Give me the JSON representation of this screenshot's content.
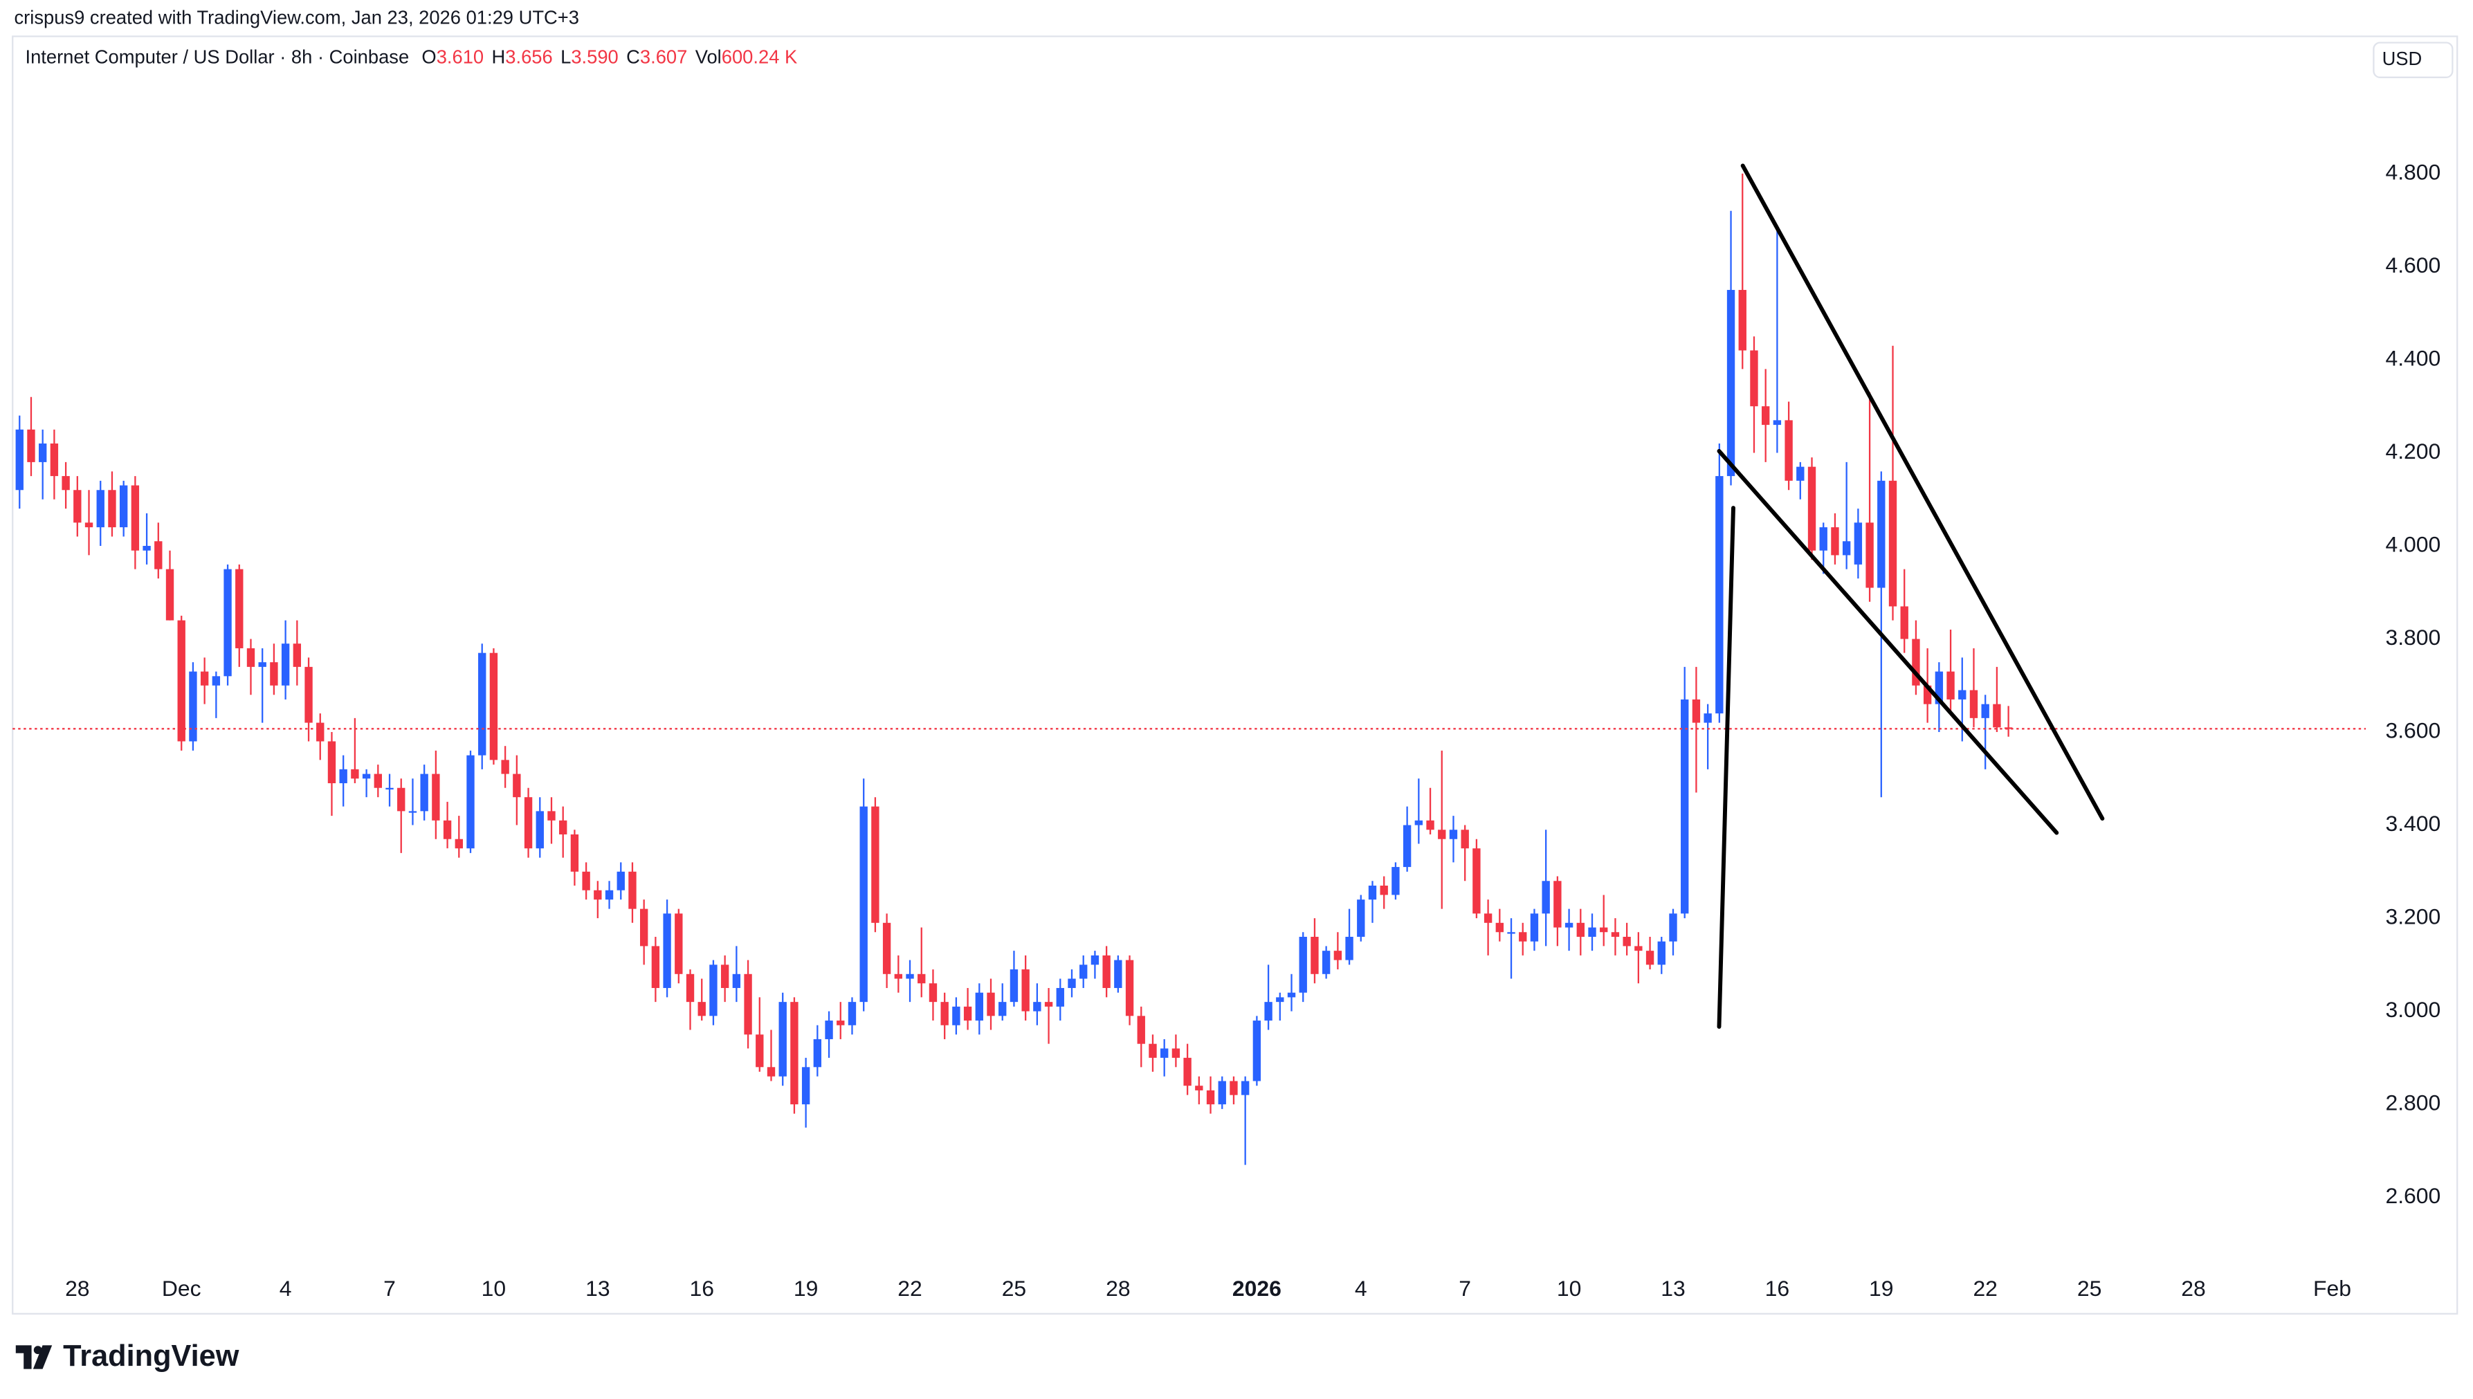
{
  "header": {
    "byline": "crispus9 created with TradingView.com, Jan 23, 2026 01:29 UTC+3",
    "symbol": "Internet Computer / US Dollar · 8h · Coinbase",
    "fields": [
      {
        "key": "O",
        "value": "3.610"
      },
      {
        "key": "H",
        "value": "3.656"
      },
      {
        "key": "L",
        "value": "3.590"
      },
      {
        "key": "C",
        "value": "3.607"
      },
      {
        "key": "Vol",
        "value": "600.24 K"
      }
    ],
    "currency": "USD",
    "brand": "TradingView"
  },
  "chart_data": {
    "type": "candlestick",
    "up_color": "#2962ff",
    "down_color": "#f23645",
    "last_price_line": true,
    "xlim": [
      -0.6,
      202.9
    ],
    "ylim": [
      2.35,
      5.0
    ],
    "yticks": [
      {
        "value": 2.6,
        "label": "2.600"
      },
      {
        "value": 2.8,
        "label": "2.800"
      },
      {
        "value": 3.0,
        "label": "3.000"
      },
      {
        "value": 3.2,
        "label": "3.200"
      },
      {
        "value": 3.4,
        "label": "3.400"
      },
      {
        "value": 3.6,
        "label": "3.600"
      },
      {
        "value": 3.8,
        "label": "3.800"
      },
      {
        "value": 4.0,
        "label": "4.000"
      },
      {
        "value": 4.2,
        "label": "4.200"
      },
      {
        "value": 4.4,
        "label": "4.400"
      },
      {
        "value": 4.6,
        "label": "4.600"
      },
      {
        "value": 4.8,
        "label": "4.800"
      }
    ],
    "xticks": [
      {
        "value": 5,
        "label": "28"
      },
      {
        "value": 14,
        "label": "Dec"
      },
      {
        "value": 23,
        "label": "4"
      },
      {
        "value": 32,
        "label": "7"
      },
      {
        "value": 41,
        "label": "10"
      },
      {
        "value": 50,
        "label": "13"
      },
      {
        "value": 59,
        "label": "16"
      },
      {
        "value": 68,
        "label": "19"
      },
      {
        "value": 77,
        "label": "22"
      },
      {
        "value": 86,
        "label": "25"
      },
      {
        "value": 95,
        "label": "28"
      },
      {
        "value": 107,
        "label": "2026"
      },
      {
        "value": 116,
        "label": "4"
      },
      {
        "value": 125,
        "label": "7"
      },
      {
        "value": 134,
        "label": "10"
      },
      {
        "value": 143,
        "label": "13"
      },
      {
        "value": 152,
        "label": "16"
      },
      {
        "value": 161,
        "label": "19"
      },
      {
        "value": 170,
        "label": "22"
      },
      {
        "value": 179,
        "label": "25"
      },
      {
        "value": 188,
        "label": "28"
      },
      {
        "value": 200,
        "label": "Feb"
      }
    ],
    "ohlc": [
      [
        4.12,
        4.28,
        4.08,
        4.25
      ],
      [
        4.25,
        4.32,
        4.15,
        4.18
      ],
      [
        4.18,
        4.25,
        4.1,
        4.22
      ],
      [
        4.22,
        4.25,
        4.1,
        4.15
      ],
      [
        4.15,
        4.18,
        4.08,
        4.12
      ],
      [
        4.12,
        4.15,
        4.02,
        4.05
      ],
      [
        4.05,
        4.12,
        3.98,
        4.04
      ],
      [
        4.04,
        4.14,
        4.0,
        4.12
      ],
      [
        4.12,
        4.16,
        4.02,
        4.04
      ],
      [
        4.04,
        4.14,
        4.02,
        4.13
      ],
      [
        4.13,
        4.15,
        3.95,
        3.99
      ],
      [
        3.99,
        4.07,
        3.96,
        4.0
      ],
      [
        4.01,
        4.05,
        3.93,
        3.95
      ],
      [
        3.95,
        3.99,
        3.84,
        3.84
      ],
      [
        3.84,
        3.85,
        3.56,
        3.58
      ],
      [
        3.58,
        3.75,
        3.56,
        3.73
      ],
      [
        3.73,
        3.76,
        3.66,
        3.7
      ],
      [
        3.7,
        3.73,
        3.63,
        3.72
      ],
      [
        3.72,
        3.96,
        3.7,
        3.95
      ],
      [
        3.95,
        3.96,
        3.74,
        3.78
      ],
      [
        3.78,
        3.8,
        3.68,
        3.74
      ],
      [
        3.74,
        3.78,
        3.62,
        3.75
      ],
      [
        3.75,
        3.79,
        3.68,
        3.7
      ],
      [
        3.7,
        3.84,
        3.67,
        3.79
      ],
      [
        3.79,
        3.84,
        3.7,
        3.74
      ],
      [
        3.74,
        3.76,
        3.58,
        3.62
      ],
      [
        3.62,
        3.64,
        3.54,
        3.58
      ],
      [
        3.58,
        3.6,
        3.42,
        3.49
      ],
      [
        3.49,
        3.55,
        3.44,
        3.52
      ],
      [
        3.52,
        3.63,
        3.49,
        3.5
      ],
      [
        3.5,
        3.52,
        3.46,
        3.51
      ],
      [
        3.51,
        3.53,
        3.46,
        3.48
      ],
      [
        3.48,
        3.51,
        3.44,
        3.48
      ],
      [
        3.48,
        3.5,
        3.34,
        3.43
      ],
      [
        3.43,
        3.5,
        3.4,
        3.43
      ],
      [
        3.43,
        3.53,
        3.41,
        3.51
      ],
      [
        3.51,
        3.56,
        3.37,
        3.41
      ],
      [
        3.41,
        3.45,
        3.35,
        3.37
      ],
      [
        3.37,
        3.42,
        3.33,
        3.35
      ],
      [
        3.35,
        3.56,
        3.34,
        3.55
      ],
      [
        3.55,
        3.79,
        3.52,
        3.77
      ],
      [
        3.77,
        3.78,
        3.53,
        3.54
      ],
      [
        3.54,
        3.57,
        3.48,
        3.51
      ],
      [
        3.51,
        3.55,
        3.4,
        3.46
      ],
      [
        3.46,
        3.48,
        3.33,
        3.35
      ],
      [
        3.35,
        3.46,
        3.33,
        3.43
      ],
      [
        3.43,
        3.46,
        3.36,
        3.41
      ],
      [
        3.41,
        3.44,
        3.33,
        3.38
      ],
      [
        3.38,
        3.39,
        3.27,
        3.3
      ],
      [
        3.3,
        3.32,
        3.24,
        3.26
      ],
      [
        3.26,
        3.28,
        3.2,
        3.24
      ],
      [
        3.24,
        3.28,
        3.22,
        3.26
      ],
      [
        3.26,
        3.32,
        3.24,
        3.3
      ],
      [
        3.3,
        3.32,
        3.19,
        3.22
      ],
      [
        3.22,
        3.24,
        3.1,
        3.14
      ],
      [
        3.14,
        3.16,
        3.02,
        3.05
      ],
      [
        3.05,
        3.24,
        3.03,
        3.21
      ],
      [
        3.21,
        3.22,
        3.06,
        3.08
      ],
      [
        3.08,
        3.09,
        2.96,
        3.02
      ],
      [
        3.02,
        3.07,
        2.98,
        2.99
      ],
      [
        2.99,
        3.11,
        2.97,
        3.1
      ],
      [
        3.1,
        3.12,
        3.02,
        3.05
      ],
      [
        3.05,
        3.14,
        3.02,
        3.08
      ],
      [
        3.08,
        3.11,
        2.92,
        2.95
      ],
      [
        2.95,
        3.03,
        2.87,
        2.88
      ],
      [
        2.88,
        2.96,
        2.85,
        2.86
      ],
      [
        2.86,
        3.04,
        2.84,
        3.02
      ],
      [
        3.02,
        3.03,
        2.78,
        2.8
      ],
      [
        2.8,
        2.9,
        2.75,
        2.88
      ],
      [
        2.88,
        2.97,
        2.86,
        2.94
      ],
      [
        2.94,
        3.0,
        2.9,
        2.98
      ],
      [
        2.98,
        3.02,
        2.94,
        2.97
      ],
      [
        2.97,
        3.03,
        2.95,
        3.02
      ],
      [
        3.02,
        3.5,
        3.0,
        3.44
      ],
      [
        3.44,
        3.46,
        3.17,
        3.19
      ],
      [
        3.19,
        3.21,
        3.05,
        3.08
      ],
      [
        3.08,
        3.12,
        3.04,
        3.07
      ],
      [
        3.07,
        3.11,
        3.02,
        3.08
      ],
      [
        3.08,
        3.18,
        3.03,
        3.06
      ],
      [
        3.06,
        3.09,
        2.98,
        3.02
      ],
      [
        3.02,
        3.04,
        2.94,
        2.97
      ],
      [
        2.97,
        3.03,
        2.95,
        3.01
      ],
      [
        3.01,
        3.05,
        2.96,
        2.98
      ],
      [
        2.98,
        3.06,
        2.95,
        3.04
      ],
      [
        3.04,
        3.07,
        2.96,
        2.99
      ],
      [
        2.99,
        3.06,
        2.98,
        3.02
      ],
      [
        3.02,
        3.13,
        3.01,
        3.09
      ],
      [
        3.09,
        3.12,
        2.98,
        3.0
      ],
      [
        3.0,
        3.06,
        2.97,
        3.02
      ],
      [
        3.02,
        3.05,
        2.93,
        3.01
      ],
      [
        3.01,
        3.07,
        2.98,
        3.05
      ],
      [
        3.05,
        3.09,
        3.03,
        3.07
      ],
      [
        3.07,
        3.12,
        3.05,
        3.1
      ],
      [
        3.1,
        3.13,
        3.07,
        3.12
      ],
      [
        3.12,
        3.14,
        3.03,
        3.05
      ],
      [
        3.05,
        3.12,
        3.04,
        3.11
      ],
      [
        3.11,
        3.12,
        2.97,
        2.99
      ],
      [
        2.99,
        3.01,
        2.88,
        2.93
      ],
      [
        2.93,
        2.95,
        2.87,
        2.9
      ],
      [
        2.9,
        2.94,
        2.86,
        2.92
      ],
      [
        2.92,
        2.95,
        2.88,
        2.9
      ],
      [
        2.9,
        2.93,
        2.82,
        2.84
      ],
      [
        2.84,
        2.86,
        2.8,
        2.83
      ],
      [
        2.83,
        2.86,
        2.78,
        2.8
      ],
      [
        2.8,
        2.86,
        2.79,
        2.85
      ],
      [
        2.85,
        2.86,
        2.8,
        2.82
      ],
      [
        2.82,
        2.86,
        2.67,
        2.85
      ],
      [
        2.85,
        2.99,
        2.84,
        2.98
      ],
      [
        2.98,
        3.1,
        2.96,
        3.02
      ],
      [
        3.02,
        3.04,
        2.98,
        3.03
      ],
      [
        3.03,
        3.08,
        3.0,
        3.04
      ],
      [
        3.04,
        3.17,
        3.02,
        3.16
      ],
      [
        3.16,
        3.2,
        3.06,
        3.08
      ],
      [
        3.08,
        3.14,
        3.07,
        3.13
      ],
      [
        3.13,
        3.17,
        3.09,
        3.11
      ],
      [
        3.11,
        3.22,
        3.1,
        3.16
      ],
      [
        3.16,
        3.25,
        3.15,
        3.24
      ],
      [
        3.24,
        3.28,
        3.19,
        3.27
      ],
      [
        3.27,
        3.29,
        3.22,
        3.25
      ],
      [
        3.25,
        3.32,
        3.24,
        3.31
      ],
      [
        3.31,
        3.44,
        3.3,
        3.4
      ],
      [
        3.4,
        3.5,
        3.36,
        3.41
      ],
      [
        3.41,
        3.48,
        3.38,
        3.39
      ],
      [
        3.39,
        3.56,
        3.22,
        3.37
      ],
      [
        3.37,
        3.42,
        3.32,
        3.39
      ],
      [
        3.39,
        3.4,
        3.28,
        3.35
      ],
      [
        3.35,
        3.37,
        3.2,
        3.21
      ],
      [
        3.21,
        3.24,
        3.12,
        3.19
      ],
      [
        3.19,
        3.22,
        3.15,
        3.17
      ],
      [
        3.17,
        3.2,
        3.07,
        3.17
      ],
      [
        3.17,
        3.19,
        3.12,
        3.15
      ],
      [
        3.15,
        3.22,
        3.13,
        3.21
      ],
      [
        3.21,
        3.39,
        3.14,
        3.28
      ],
      [
        3.28,
        3.29,
        3.14,
        3.18
      ],
      [
        3.18,
        3.22,
        3.13,
        3.19
      ],
      [
        3.19,
        3.22,
        3.12,
        3.16
      ],
      [
        3.16,
        3.21,
        3.13,
        3.18
      ],
      [
        3.18,
        3.25,
        3.14,
        3.17
      ],
      [
        3.17,
        3.2,
        3.12,
        3.16
      ],
      [
        3.16,
        3.19,
        3.12,
        3.14
      ],
      [
        3.14,
        3.17,
        3.06,
        3.13
      ],
      [
        3.13,
        3.16,
        3.09,
        3.1
      ],
      [
        3.1,
        3.16,
        3.08,
        3.15
      ],
      [
        3.15,
        3.22,
        3.12,
        3.21
      ],
      [
        3.21,
        3.74,
        3.2,
        3.67
      ],
      [
        3.67,
        3.74,
        3.47,
        3.62
      ],
      [
        3.62,
        3.66,
        3.52,
        3.64
      ],
      [
        3.64,
        4.22,
        3.62,
        4.15
      ],
      [
        4.15,
        4.72,
        4.13,
        4.55
      ],
      [
        4.55,
        4.8,
        4.38,
        4.42
      ],
      [
        4.42,
        4.45,
        4.2,
        4.3
      ],
      [
        4.3,
        4.38,
        4.18,
        4.26
      ],
      [
        4.26,
        4.68,
        4.2,
        4.27
      ],
      [
        4.27,
        4.31,
        4.12,
        4.14
      ],
      [
        4.14,
        4.18,
        4.1,
        4.17
      ],
      [
        4.17,
        4.19,
        3.97,
        3.99
      ],
      [
        3.99,
        4.05,
        3.94,
        4.04
      ],
      [
        4.04,
        4.07,
        3.96,
        3.98
      ],
      [
        3.98,
        4.18,
        3.95,
        4.01
      ],
      [
        3.96,
        4.08,
        3.93,
        4.05
      ],
      [
        4.05,
        4.33,
        3.88,
        3.91
      ],
      [
        3.91,
        4.16,
        3.46,
        4.14
      ],
      [
        4.14,
        4.43,
        3.84,
        3.87
      ],
      [
        3.87,
        3.95,
        3.77,
        3.8
      ],
      [
        3.8,
        3.84,
        3.68,
        3.7
      ],
      [
        3.7,
        3.78,
        3.62,
        3.66
      ],
      [
        3.66,
        3.75,
        3.6,
        3.73
      ],
      [
        3.73,
        3.82,
        3.64,
        3.67
      ],
      [
        3.67,
        3.76,
        3.58,
        3.69
      ],
      [
        3.69,
        3.78,
        3.61,
        3.63
      ],
      [
        3.63,
        3.68,
        3.52,
        3.66
      ],
      [
        3.66,
        3.74,
        3.6,
        3.61
      ],
      [
        3.61,
        3.656,
        3.59,
        3.607
      ]
    ]
  }
}
